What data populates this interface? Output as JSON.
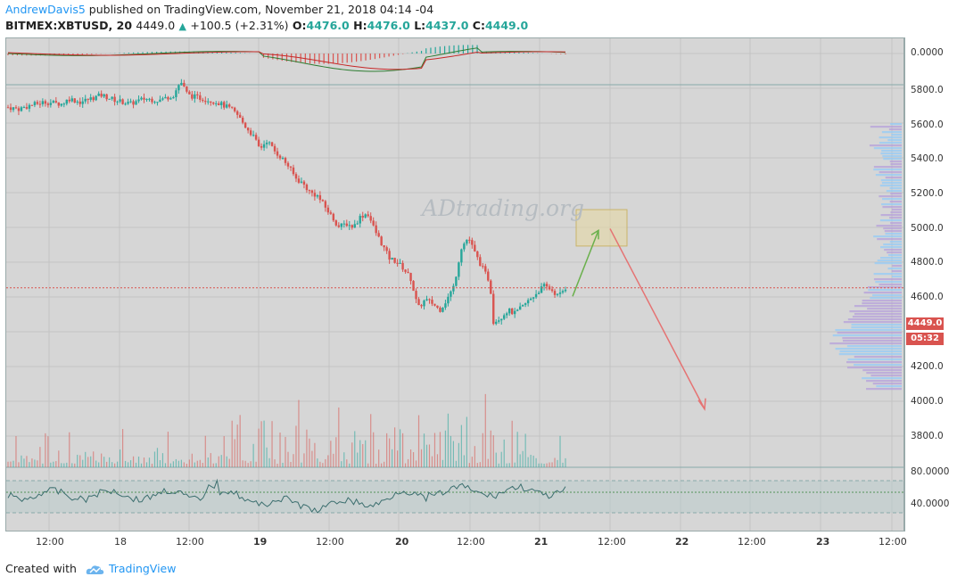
{
  "header": {
    "author": "AndrewDavis5",
    "published_text": " published on TradingView.com, November 21, 2018 04:14 -04"
  },
  "ohlc": {
    "symbol": "BITMEX:XBTUSD, 20",
    "last": "4449.0",
    "change": "+100.5 (+2.31%)",
    "open_label": "O:",
    "open": "4476.0",
    "high_label": "H:",
    "high": "4476.0",
    "low_label": "L:",
    "low": "4437.0",
    "close_label": "C:",
    "close": "4449.0"
  },
  "watermark": "ADtrading.org",
  "price_tag": {
    "price": "4449.0",
    "countdown": "05:32"
  },
  "macd_axis": [
    "0.0000"
  ],
  "price_axis": [
    "5800.0",
    "5600.0",
    "5400.0",
    "5200.0",
    "5000.0",
    "4800.0",
    "4600.0",
    "4200.0",
    "4000.0",
    "3800.0"
  ],
  "rsi_axis": [
    "80.0000",
    "40.0000"
  ],
  "time_axis": [
    "12:00",
    "18",
    "12:00",
    "19",
    "12:00",
    "20",
    "12:00",
    "21",
    "12:00",
    "22",
    "12:00",
    "23",
    "12:00"
  ],
  "footer": {
    "created_with": "Created with",
    "brand": "TradingView"
  },
  "colors": {
    "up": "#26a69a",
    "down": "#d9534f",
    "arrow_up": "#6ab04c",
    "arrow_down": "#e57373",
    "box": "#e8d9a0"
  },
  "chart_data": {
    "type": "candlestick",
    "symbol": "BITMEX:XBTUSD",
    "interval": "20",
    "ylim": [
      3650,
      5900
    ],
    "current_price": 4449.0,
    "path": [
      [
        0,
        5490
      ],
      [
        0.3,
        5480
      ],
      [
        0.6,
        5500
      ],
      [
        1,
        5520
      ],
      [
        1.5,
        5510
      ],
      [
        1.7,
        5540
      ],
      [
        2,
        5520
      ],
      [
        2.6,
        5560
      ],
      [
        3,
        5530
      ],
      [
        3.4,
        5510
      ],
      [
        3.8,
        5540
      ],
      [
        4.2,
        5530
      ],
      [
        4.6,
        5560
      ],
      [
        4.8,
        5640
      ],
      [
        5,
        5560
      ],
      [
        5.4,
        5540
      ],
      [
        5.8,
        5520
      ],
      [
        6,
        5500
      ],
      [
        6.2,
        5480
      ],
      [
        6.4,
        5440
      ],
      [
        6.6,
        5380
      ],
      [
        6.8,
        5330
      ],
      [
        7,
        5250
      ],
      [
        7.2,
        5300
      ],
      [
        7.4,
        5240
      ],
      [
        7.6,
        5200
      ],
      [
        7.8,
        5150
      ],
      [
        8,
        5080
      ],
      [
        8.2,
        5050
      ],
      [
        8.4,
        5000
      ],
      [
        8.6,
        4980
      ],
      [
        8.8,
        4920
      ],
      [
        9,
        4860
      ],
      [
        9.2,
        4800
      ],
      [
        9.4,
        4820
      ],
      [
        9.6,
        4800
      ],
      [
        9.8,
        4860
      ],
      [
        10,
        4880
      ],
      [
        10.2,
        4780
      ],
      [
        10.4,
        4700
      ],
      [
        10.6,
        4620
      ],
      [
        10.8,
        4600
      ],
      [
        11,
        4560
      ],
      [
        11.2,
        4500
      ],
      [
        11.4,
        4330
      ],
      [
        11.6,
        4380
      ],
      [
        11.8,
        4360
      ],
      [
        12,
        4320
      ],
      [
        12.2,
        4380
      ],
      [
        12.4,
        4460
      ],
      [
        12.6,
        4680
      ],
      [
        12.8,
        4740
      ],
      [
        13,
        4640
      ],
      [
        13.2,
        4560
      ],
      [
        13.4,
        4480
      ],
      [
        13.5,
        4250
      ],
      [
        13.7,
        4280
      ],
      [
        13.9,
        4320
      ],
      [
        14.1,
        4300
      ],
      [
        14.3,
        4340
      ],
      [
        14.5,
        4380
      ],
      [
        14.7,
        4420
      ],
      [
        14.9,
        4460
      ],
      [
        15.1,
        4440
      ],
      [
        15.3,
        4400
      ],
      [
        15.5,
        4449
      ]
    ],
    "annotations": {
      "target_box": {
        "price_low": 4690,
        "price_high": 4900
      },
      "arrow_up": {
        "from": 4400,
        "to": 4780
      },
      "arrow_down": {
        "from": 4790,
        "to": 3750
      }
    }
  }
}
